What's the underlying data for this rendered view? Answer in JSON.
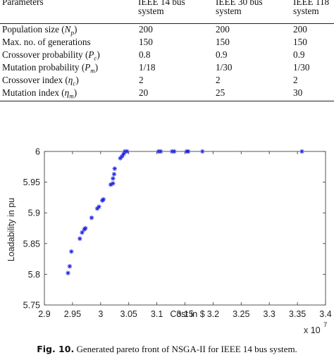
{
  "param_table": {
    "header": {
      "param": "Parameters",
      "col1": [
        "IEEE 14 bus",
        "system"
      ],
      "col2": [
        "IEEE 30 bus",
        "system"
      ],
      "col3": [
        "IEEE 118",
        "system"
      ]
    },
    "rows": [
      {
        "label": "Population size (",
        "sym": "N",
        "sub": "p",
        "close": ")",
        "v1": "200",
        "v2": "200",
        "v3": "200"
      },
      {
        "label": "Max. no. of generations",
        "sym": "",
        "sub": "",
        "close": "",
        "v1": "150",
        "v2": "150",
        "v3": "150"
      },
      {
        "label": "Crossover probability (",
        "sym": "P",
        "sub": "c",
        "close": ")",
        "v1": "0.8",
        "v2": "0.9",
        "v3": "0.9"
      },
      {
        "label": "Mutation probability (",
        "sym": "P",
        "sub": "m",
        "close": ")",
        "v1": "1/18",
        "v2": "1/30",
        "v3": "1/30"
      },
      {
        "label": "Crossover index (",
        "sym": "η",
        "sub": "c",
        "close": ")",
        "v1": "2",
        "v2": "2",
        "v3": "2"
      },
      {
        "label": "Mutation index (",
        "sym": "η",
        "sub": "m",
        "close": ")",
        "v1": "20",
        "v2": "25",
        "v3": "30"
      }
    ]
  },
  "chart_data": {
    "type": "scatter",
    "title": "",
    "xlabel": "Cost in $",
    "ylabel": "Loadability in pu",
    "x_multiplier": "x 10",
    "x_multiplier_exp": "7",
    "xlim": [
      2.9,
      3.4
    ],
    "ylim": [
      5.75,
      6.0
    ],
    "xticks": [
      "2.9",
      "2.95",
      "3",
      "3.05",
      "3.1",
      "3.15",
      "3.2",
      "3.25",
      "3.3",
      "3.35",
      "3.4"
    ],
    "yticks": [
      "5.75",
      "5.8",
      "5.85",
      "5.9",
      "5.95",
      "6"
    ],
    "grid": false,
    "marker_color": "#2222dd",
    "series": [
      {
        "x": [
          2.942,
          2.945,
          2.948,
          2.963,
          2.967,
          2.971,
          2.973,
          2.984,
          2.994,
          2.997,
          3.003,
          3.005,
          3.018,
          3.022,
          3.022,
          3.024,
          3.025,
          3.035,
          3.038,
          3.041,
          3.043,
          3.047,
          3.103,
          3.107,
          3.127,
          3.131,
          3.153,
          3.156,
          3.181,
          3.358
        ],
        "y": [
          5.802,
          5.813,
          5.837,
          5.858,
          5.868,
          5.873,
          5.875,
          5.892,
          5.907,
          5.91,
          5.92,
          5.922,
          5.946,
          5.948,
          5.956,
          5.963,
          5.972,
          5.989,
          5.992,
          5.996,
          6.0,
          6.0,
          6.0,
          6.0,
          6.0,
          6.0,
          6.0,
          6.0,
          6.0,
          6.0
        ]
      }
    ]
  },
  "caption": {
    "label": "Fig. 10.",
    "text": "Generated pareto front of NSGA-II for IEEE 14 bus system."
  }
}
